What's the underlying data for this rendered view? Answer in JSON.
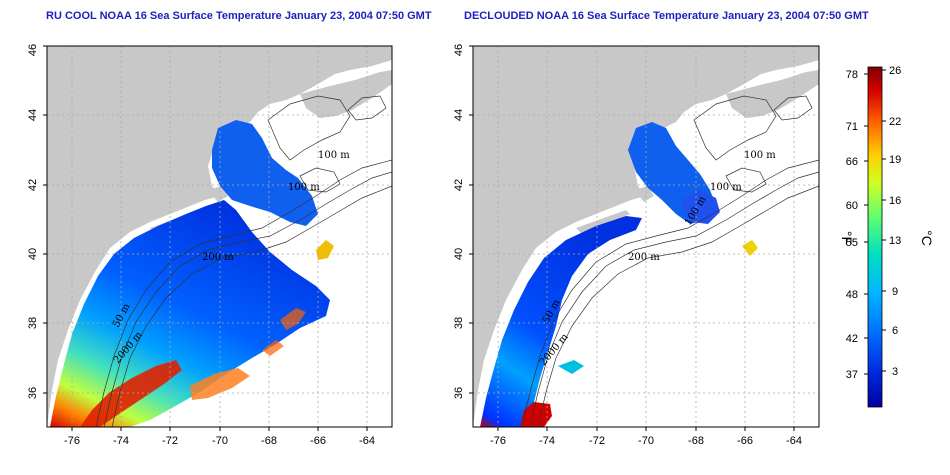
{
  "panels": [
    {
      "id": "left",
      "title": "RU COOL NOAA 16 Sea Surface Temperature January 23, 2004 07:50 GMT",
      "contour_labels": [
        "100 m",
        "100 m",
        "200 m",
        "50 m",
        "2000 m"
      ]
    },
    {
      "id": "right",
      "title": "DECLOUDED NOAA 16 Sea Surface Temperature January 23, 2004 07:50 GMT",
      "contour_labels": [
        "100 m",
        "100 m",
        "100 m",
        "200 m",
        "50 m",
        "2000 m"
      ]
    }
  ],
  "axes": {
    "x_ticks": [
      "-76",
      "-74",
      "-72",
      "-70",
      "-68",
      "-66",
      "-64"
    ],
    "y_ticks": [
      "36",
      "38",
      "40",
      "42",
      "44",
      "46"
    ],
    "lon_range": [
      -77,
      -63
    ],
    "lat_range": [
      35,
      46
    ]
  },
  "colorbar": {
    "celsius_ticks": [
      "26",
      "22",
      "19",
      "16",
      "13",
      "9",
      "6",
      "3"
    ],
    "fahrenheit_ticks": [
      "78",
      "71",
      "66",
      "60",
      "55",
      "48",
      "42",
      "37"
    ],
    "celsius_unit": "°C",
    "fahrenheit_unit": "°F",
    "range_c": [
      0,
      26
    ],
    "colors": [
      "#0000a0",
      "#0030ff",
      "#00a0ff",
      "#00e0d0",
      "#40ff80",
      "#c0ff30",
      "#ffd000",
      "#ff6000",
      "#d00000",
      "#800000"
    ]
  },
  "colors": {
    "land": "#c8c8c8",
    "ocean": "#ffffff",
    "title": "#1f1fbf"
  }
}
